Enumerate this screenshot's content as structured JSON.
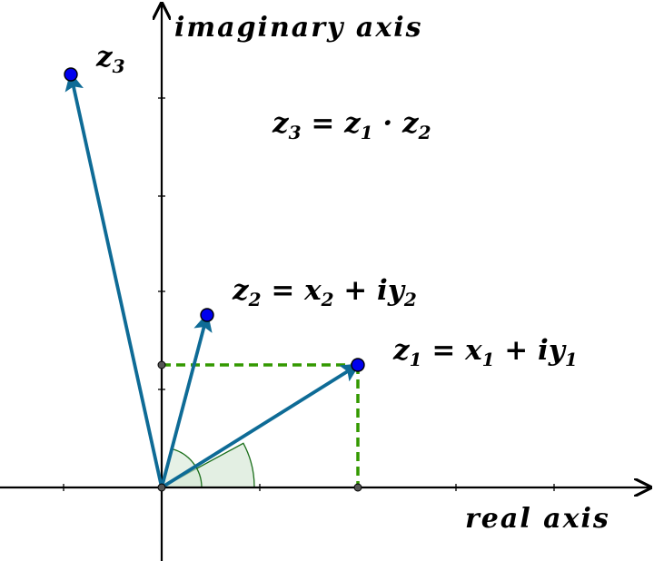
{
  "axes": {
    "x_label": "real axis",
    "y_label": "imaginary axis"
  },
  "points": {
    "z1": {
      "name": "z",
      "sub": "1",
      "eq_rest": " = x",
      "eq_sub1": "1",
      "eq_mid": " + iy",
      "eq_sub2": "1"
    },
    "z2": {
      "name": "z",
      "sub": "2",
      "eq_rest": " = x",
      "eq_sub1": "2",
      "eq_mid": " + iy",
      "eq_sub2": "2"
    },
    "z3": {
      "name": "z",
      "sub": "3"
    }
  },
  "product": {
    "lhs": "z",
    "lhs_sub": "3",
    "eq": " = z",
    "rhs_sub1": "1",
    "dot": " · z",
    "rhs_sub2": "2"
  },
  "colors": {
    "vector": "#0e6b96",
    "point_fill": "#0000ee",
    "dashed": "#339900",
    "angle_fill": "#e3efe3",
    "angle_stroke": "#1a6e1a",
    "axis": "#000000"
  }
}
